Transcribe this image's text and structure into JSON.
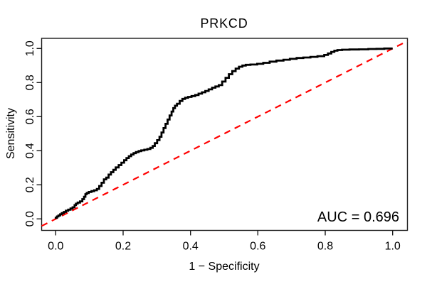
{
  "chart_data": {
    "type": "line",
    "title": "PRKCD",
    "xlabel": "1 − Specificity",
    "ylabel": "Sensitivity",
    "annotation": "AUC = 0.696",
    "auc_value": 0.696,
    "xlim": [
      0,
      1
    ],
    "ylim": [
      0,
      1
    ],
    "grid": false,
    "legend_position": "none",
    "x_ticks": {
      "values": [
        0,
        0.2,
        0.4,
        0.6,
        0.8,
        1.0
      ],
      "labels": [
        "0.0",
        "0.2",
        "0.4",
        "0.6",
        "0.8",
        "1.0"
      ]
    },
    "y_ticks": {
      "values": [
        0,
        0.2,
        0.4,
        0.6,
        0.8,
        1.0
      ],
      "labels": [
        "0.0",
        "0.2",
        "0.4",
        "0.6",
        "0.8",
        "1.0"
      ]
    },
    "colors": {
      "roc_curve": "#000000",
      "reference_line": "#ff0000",
      "axis": "#1a1a1a",
      "text": "#000000",
      "background": "#ffffff"
    },
    "series": [
      {
        "name": "ROC curve",
        "color": "#000000",
        "line_style": "solid",
        "draw": "step",
        "points": [
          [
            0.0,
            0.0
          ],
          [
            0.004,
            0.007
          ],
          [
            0.008,
            0.014
          ],
          [
            0.013,
            0.02
          ],
          [
            0.018,
            0.027
          ],
          [
            0.024,
            0.034
          ],
          [
            0.03,
            0.041
          ],
          [
            0.037,
            0.048
          ],
          [
            0.044,
            0.054
          ],
          [
            0.05,
            0.061
          ],
          [
            0.056,
            0.068
          ],
          [
            0.06,
            0.081
          ],
          [
            0.065,
            0.089
          ],
          [
            0.072,
            0.096
          ],
          [
            0.079,
            0.103
          ],
          [
            0.084,
            0.116
          ],
          [
            0.088,
            0.13
          ],
          [
            0.092,
            0.145
          ],
          [
            0.098,
            0.152
          ],
          [
            0.106,
            0.158
          ],
          [
            0.114,
            0.163
          ],
          [
            0.122,
            0.168
          ],
          [
            0.129,
            0.176
          ],
          [
            0.136,
            0.193
          ],
          [
            0.143,
            0.212
          ],
          [
            0.15,
            0.232
          ],
          [
            0.157,
            0.242
          ],
          [
            0.164,
            0.26
          ],
          [
            0.171,
            0.274
          ],
          [
            0.178,
            0.288
          ],
          [
            0.187,
            0.302
          ],
          [
            0.195,
            0.316
          ],
          [
            0.203,
            0.33
          ],
          [
            0.21,
            0.344
          ],
          [
            0.217,
            0.357
          ],
          [
            0.224,
            0.368
          ],
          [
            0.231,
            0.378
          ],
          [
            0.238,
            0.386
          ],
          [
            0.246,
            0.392
          ],
          [
            0.254,
            0.398
          ],
          [
            0.263,
            0.402
          ],
          [
            0.272,
            0.406
          ],
          [
            0.281,
            0.41
          ],
          [
            0.288,
            0.417
          ],
          [
            0.294,
            0.428
          ],
          [
            0.301,
            0.444
          ],
          [
            0.308,
            0.462
          ],
          [
            0.314,
            0.482
          ],
          [
            0.32,
            0.507
          ],
          [
            0.326,
            0.533
          ],
          [
            0.332,
            0.558
          ],
          [
            0.338,
            0.583
          ],
          [
            0.344,
            0.607
          ],
          [
            0.349,
            0.63
          ],
          [
            0.354,
            0.65
          ],
          [
            0.36,
            0.664
          ],
          [
            0.368,
            0.676
          ],
          [
            0.376,
            0.692
          ],
          [
            0.384,
            0.704
          ],
          [
            0.393,
            0.711
          ],
          [
            0.403,
            0.716
          ],
          [
            0.414,
            0.721
          ],
          [
            0.424,
            0.727
          ],
          [
            0.434,
            0.735
          ],
          [
            0.444,
            0.743
          ],
          [
            0.454,
            0.751
          ],
          [
            0.464,
            0.76
          ],
          [
            0.474,
            0.77
          ],
          [
            0.484,
            0.777
          ],
          [
            0.494,
            0.785
          ],
          [
            0.504,
            0.806
          ],
          [
            0.514,
            0.828
          ],
          [
            0.524,
            0.849
          ],
          [
            0.534,
            0.867
          ],
          [
            0.544,
            0.882
          ],
          [
            0.554,
            0.893
          ],
          [
            0.564,
            0.9
          ],
          [
            0.578,
            0.904
          ],
          [
            0.598,
            0.906
          ],
          [
            0.616,
            0.91
          ],
          [
            0.635,
            0.916
          ],
          [
            0.655,
            0.923
          ],
          [
            0.676,
            0.929
          ],
          [
            0.695,
            0.934
          ],
          [
            0.715,
            0.939
          ],
          [
            0.735,
            0.944
          ],
          [
            0.756,
            0.947
          ],
          [
            0.777,
            0.951
          ],
          [
            0.797,
            0.955
          ],
          [
            0.808,
            0.962
          ],
          [
            0.818,
            0.971
          ],
          [
            0.827,
            0.98
          ],
          [
            0.836,
            0.987
          ],
          [
            0.85,
            0.991
          ],
          [
            0.872,
            0.993
          ],
          [
            0.9,
            0.994
          ],
          [
            0.928,
            0.995
          ],
          [
            0.952,
            0.997
          ],
          [
            0.975,
            0.998
          ],
          [
            1.0,
            1.0
          ]
        ]
      }
    ],
    "reference_line": {
      "name": "chance diagonal",
      "color": "#ff0000",
      "line_style": "dashed",
      "from": [
        0,
        0
      ],
      "to": [
        1,
        1
      ]
    }
  }
}
